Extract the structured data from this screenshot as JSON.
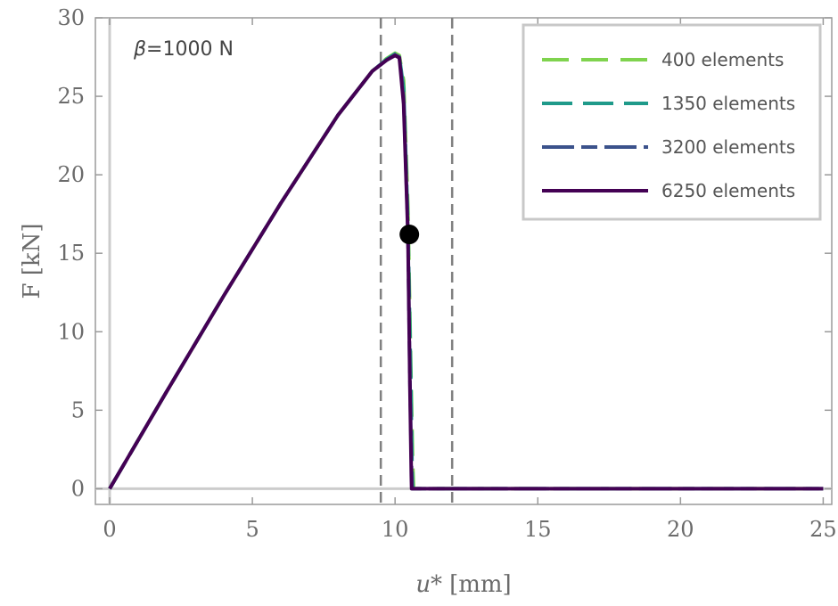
{
  "chart_data": {
    "type": "line",
    "xlabel_var": "u*",
    "xlabel_unit": "[mm]",
    "ylabel": "F [kN]",
    "xlim": [
      -0.5,
      25.3
    ],
    "ylim": [
      -1,
      30
    ],
    "xticks": [
      0,
      5,
      10,
      15,
      20,
      25
    ],
    "yticks": [
      0,
      5,
      10,
      15,
      20,
      25,
      30
    ],
    "annotation": {
      "prefix": "β",
      "text": "=1000 N"
    },
    "vlines": [
      9.5,
      12
    ],
    "marker_point": {
      "x": 10.5,
      "y": 16.2
    },
    "legend_position": "top-right",
    "series": [
      {
        "name": "400 elements",
        "color": "#7fd34e",
        "dash": "30,14",
        "x": [
          0,
          2,
          4,
          6,
          8,
          9.2,
          9.7,
          10.0,
          10.15,
          10.3,
          10.45,
          10.55,
          10.62,
          10.65,
          25
        ],
        "y": [
          0,
          6.2,
          12.3,
          18.2,
          23.8,
          26.6,
          27.4,
          27.75,
          27.6,
          26.0,
          18.0,
          8.0,
          1.5,
          0,
          0
        ]
      },
      {
        "name": "1350 elements",
        "color": "#1f9a8a",
        "dash": "34,12",
        "x": [
          0,
          2,
          4,
          6,
          8,
          9.2,
          9.7,
          10.0,
          10.15,
          10.3,
          10.45,
          10.55,
          10.6,
          10.62,
          25
        ],
        "y": [
          0,
          6.2,
          12.3,
          18.2,
          23.8,
          26.6,
          27.35,
          27.7,
          27.55,
          25.5,
          17.0,
          7.0,
          1.0,
          0,
          0
        ]
      },
      {
        "name": "3200 elements",
        "color": "#3b528b",
        "dash": "36,8,18,8",
        "x": [
          0,
          2,
          4,
          6,
          8,
          9.2,
          9.7,
          10.0,
          10.15,
          10.3,
          10.45,
          10.52,
          10.58,
          10.6,
          25
        ],
        "y": [
          0,
          6.2,
          12.3,
          18.2,
          23.8,
          26.6,
          27.3,
          27.65,
          27.5,
          25.0,
          16.5,
          7.0,
          1.0,
          0,
          0
        ]
      },
      {
        "name": "6250 elements",
        "color": "#440154",
        "dash": "",
        "x": [
          0,
          2,
          4,
          6,
          8,
          9.2,
          9.7,
          10.0,
          10.15,
          10.3,
          10.45,
          10.52,
          10.57,
          10.58,
          25
        ],
        "y": [
          0,
          6.2,
          12.3,
          18.2,
          23.8,
          26.6,
          27.3,
          27.6,
          27.45,
          24.5,
          16.2,
          6.5,
          0.8,
          0,
          0
        ]
      }
    ]
  }
}
